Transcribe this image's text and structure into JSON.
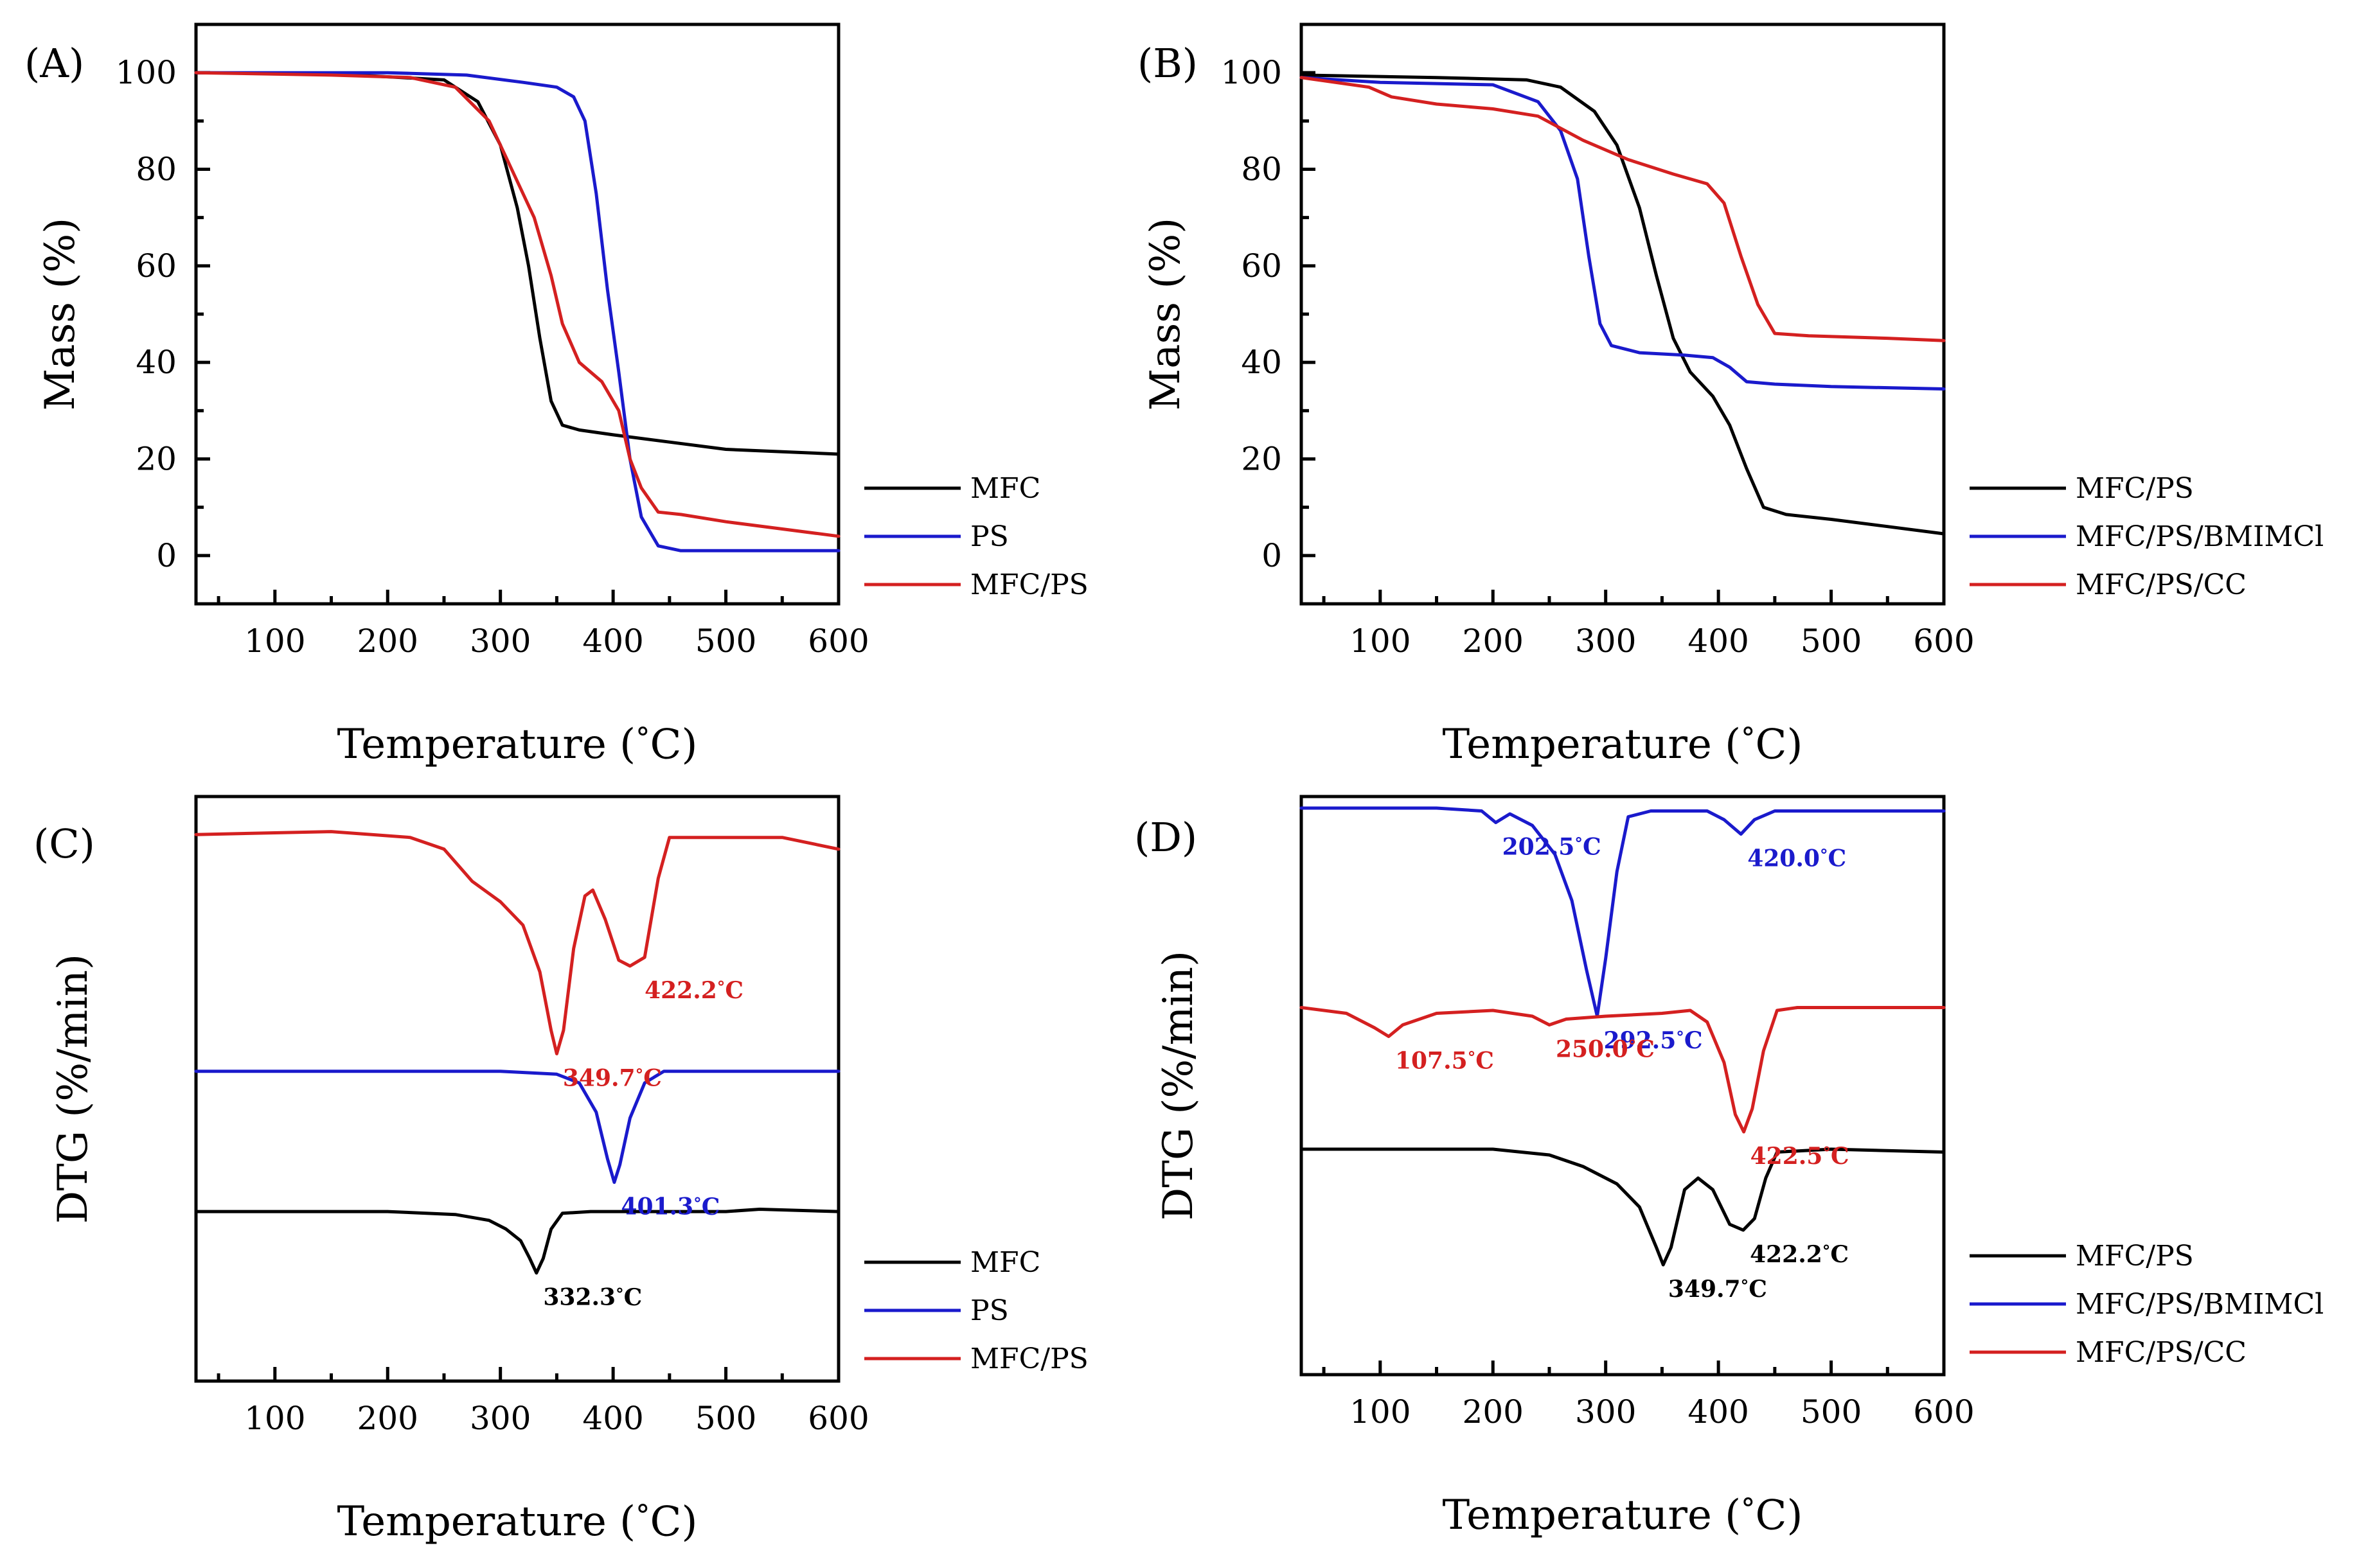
{
  "colors": {
    "black": "#000000",
    "blue": "#1a1acc",
    "red": "#d42020"
  },
  "chart_data": [
    {
      "id": "A",
      "type": "line",
      "panel_label": "(A)",
      "xlabel": "Temperature (°C)",
      "ylabel": "Mass (%)",
      "xlim": [
        30,
        600
      ],
      "ylim": [
        -10,
        110
      ],
      "xticks": [
        100,
        200,
        300,
        400,
        500,
        600
      ],
      "yticks": [
        0,
        20,
        40,
        60,
        80,
        100
      ],
      "legend": "right",
      "series": [
        {
          "name": "MFC",
          "color": "#000000",
          "points": [
            [
              30,
              100
            ],
            [
              150,
              99.8
            ],
            [
              250,
              98.5
            ],
            [
              280,
              94
            ],
            [
              300,
              85
            ],
            [
              315,
              72
            ],
            [
              325,
              60
            ],
            [
              335,
              45
            ],
            [
              345,
              32
            ],
            [
              355,
              27
            ],
            [
              370,
              26
            ],
            [
              400,
              25
            ],
            [
              450,
              23.5
            ],
            [
              500,
              22
            ],
            [
              550,
              21.5
            ],
            [
              600,
              21
            ]
          ]
        },
        {
          "name": "PS",
          "color": "#1a1acc",
          "points": [
            [
              30,
              100
            ],
            [
              200,
              100
            ],
            [
              270,
              99.5
            ],
            [
              320,
              98
            ],
            [
              350,
              97
            ],
            [
              365,
              95
            ],
            [
              375,
              90
            ],
            [
              385,
              75
            ],
            [
              395,
              55
            ],
            [
              405,
              38
            ],
            [
              415,
              20
            ],
            [
              425,
              8
            ],
            [
              440,
              2
            ],
            [
              460,
              1
            ],
            [
              500,
              1
            ],
            [
              600,
              1
            ]
          ]
        },
        {
          "name": "MFC/PS",
          "color": "#d42020",
          "points": [
            [
              30,
              100
            ],
            [
              150,
              99.5
            ],
            [
              220,
              99
            ],
            [
              260,
              97
            ],
            [
              290,
              90
            ],
            [
              310,
              80
            ],
            [
              330,
              70
            ],
            [
              345,
              58
            ],
            [
              355,
              48
            ],
            [
              370,
              40
            ],
            [
              390,
              36
            ],
            [
              405,
              30
            ],
            [
              415,
              20
            ],
            [
              425,
              14
            ],
            [
              440,
              9
            ],
            [
              460,
              8.5
            ],
            [
              500,
              7
            ],
            [
              550,
              5.5
            ],
            [
              600,
              4
            ]
          ]
        }
      ]
    },
    {
      "id": "B",
      "type": "line",
      "panel_label": "(B)",
      "xlabel": "Temperature (°C)",
      "ylabel": "Mass (%)",
      "xlim": [
        30,
        600
      ],
      "ylim": [
        -10,
        110
      ],
      "xticks": [
        100,
        200,
        300,
        400,
        500,
        600
      ],
      "yticks": [
        0,
        20,
        40,
        60,
        80,
        100
      ],
      "legend": "right",
      "series": [
        {
          "name": "MFC/PS",
          "color": "#000000",
          "points": [
            [
              30,
              99.5
            ],
            [
              150,
              99
            ],
            [
              230,
              98.5
            ],
            [
              260,
              97
            ],
            [
              290,
              92
            ],
            [
              310,
              85
            ],
            [
              330,
              72
            ],
            [
              345,
              58
            ],
            [
              360,
              45
            ],
            [
              375,
              38
            ],
            [
              395,
              33
            ],
            [
              410,
              27
            ],
            [
              425,
              18
            ],
            [
              440,
              10
            ],
            [
              460,
              8.5
            ],
            [
              500,
              7.5
            ],
            [
              550,
              6
            ],
            [
              600,
              4.5
            ]
          ]
        },
        {
          "name": "MFC/PS/BMIMCl",
          "color": "#1a1acc",
          "points": [
            [
              30,
              99
            ],
            [
              100,
              98
            ],
            [
              200,
              97.5
            ],
            [
              240,
              94
            ],
            [
              260,
              88
            ],
            [
              275,
              78
            ],
            [
              285,
              62
            ],
            [
              295,
              48
            ],
            [
              305,
              43.5
            ],
            [
              330,
              42
            ],
            [
              370,
              41.5
            ],
            [
              395,
              41
            ],
            [
              410,
              39
            ],
            [
              425,
              36
            ],
            [
              450,
              35.5
            ],
            [
              500,
              35
            ],
            [
              600,
              34.5
            ]
          ]
        },
        {
          "name": "MFC/PS/CC",
          "color": "#d42020",
          "points": [
            [
              30,
              99
            ],
            [
              90,
              97
            ],
            [
              110,
              95
            ],
            [
              150,
              93.5
            ],
            [
              200,
              92.5
            ],
            [
              240,
              91
            ],
            [
              280,
              86
            ],
            [
              320,
              82
            ],
            [
              360,
              79
            ],
            [
              390,
              77
            ],
            [
              405,
              73
            ],
            [
              420,
              62
            ],
            [
              435,
              52
            ],
            [
              450,
              46
            ],
            [
              480,
              45.5
            ],
            [
              550,
              45
            ],
            [
              600,
              44.5
            ]
          ]
        }
      ]
    },
    {
      "id": "C",
      "type": "line",
      "panel_label": "(C)",
      "xlabel": "Temperature (°C)",
      "ylabel": "DTG (%/min)",
      "xlim": [
        30,
        600
      ],
      "ylim": [
        0,
        100
      ],
      "xticks": [
        100,
        200,
        300,
        400,
        500,
        600
      ],
      "yticks": [],
      "legend": "right",
      "series": [
        {
          "name": "MFC",
          "color": "#000000",
          "points": [
            [
              30,
              29
            ],
            [
              200,
              29
            ],
            [
              260,
              28.5
            ],
            [
              290,
              27.5
            ],
            [
              305,
              26
            ],
            [
              318,
              24
            ],
            [
              326,
              21
            ],
            [
              332,
              18.5
            ],
            [
              338,
              21
            ],
            [
              345,
              26
            ],
            [
              355,
              28.7
            ],
            [
              380,
              29
            ],
            [
              500,
              29
            ],
            [
              530,
              29.4
            ],
            [
              600,
              29
            ]
          ]
        },
        {
          "name": "PS",
          "color": "#1a1acc",
          "points": [
            [
              30,
              53
            ],
            [
              300,
              53
            ],
            [
              350,
              52.5
            ],
            [
              370,
              51
            ],
            [
              385,
              46
            ],
            [
              395,
              38
            ],
            [
              401,
              34
            ],
            [
              406,
              37
            ],
            [
              415,
              45
            ],
            [
              428,
              51
            ],
            [
              445,
              53
            ],
            [
              600,
              53
            ]
          ]
        },
        {
          "name": "MFC/PS",
          "color": "#d42020",
          "points": [
            [
              30,
              93.5
            ],
            [
              150,
              94
            ],
            [
              220,
              93
            ],
            [
              250,
              91
            ],
            [
              275,
              85.5
            ],
            [
              300,
              82
            ],
            [
              320,
              78
            ],
            [
              335,
              70
            ],
            [
              345,
              60
            ],
            [
              350,
              56
            ],
            [
              356,
              60
            ],
            [
              365,
              74
            ],
            [
              375,
              83
            ],
            [
              382,
              84
            ],
            [
              393,
              79
            ],
            [
              405,
              72
            ],
            [
              415,
              71
            ],
            [
              428,
              72.5
            ],
            [
              440,
              86
            ],
            [
              450,
              93
            ],
            [
              500,
              93
            ],
            [
              550,
              93
            ],
            [
              600,
              91
            ]
          ]
        }
      ],
      "annotations": [
        {
          "text": "332.3°C",
          "color": "#000000",
          "x": 332.3,
          "y": 18.5
        },
        {
          "text": "401.3°C",
          "color": "#1a1acc",
          "x": 401.3,
          "y": 34
        },
        {
          "text": "349.7°C",
          "color": "#d42020",
          "x": 349.7,
          "y": 56
        },
        {
          "text": "422.2°C",
          "color": "#d42020",
          "x": 422.2,
          "y": 71
        }
      ]
    },
    {
      "id": "D",
      "type": "line",
      "panel_label": "(D)",
      "xlabel": "Temperature (°C)",
      "ylabel": "DTG (%/min)",
      "xlim": [
        30,
        600
      ],
      "ylim": [
        0,
        100
      ],
      "xticks": [
        100,
        200,
        300,
        400,
        500,
        600
      ],
      "yticks": [],
      "legend": "right",
      "series": [
        {
          "name": "MFC/PS",
          "color": "#000000",
          "points": [
            [
              30,
              39
            ],
            [
              200,
              39
            ],
            [
              250,
              38
            ],
            [
              280,
              36
            ],
            [
              310,
              33
            ],
            [
              330,
              29
            ],
            [
              345,
              22
            ],
            [
              351,
              19
            ],
            [
              358,
              22
            ],
            [
              370,
              32
            ],
            [
              382,
              34
            ],
            [
              395,
              32
            ],
            [
              410,
              26
            ],
            [
              422,
              25
            ],
            [
              432,
              27
            ],
            [
              442,
              34
            ],
            [
              452,
              38.5
            ],
            [
              500,
              39
            ],
            [
              600,
              38.5
            ]
          ]
        },
        {
          "name": "MFC/PS/BMIMCl",
          "color": "#1a1acc",
          "points": [
            [
              30,
              98
            ],
            [
              150,
              98
            ],
            [
              190,
              97.5
            ],
            [
              202.5,
              95.5
            ],
            [
              215,
              97
            ],
            [
              235,
              95
            ],
            [
              255,
              90
            ],
            [
              270,
              82
            ],
            [
              283,
              70
            ],
            [
              292.5,
              62
            ],
            [
              300,
              72
            ],
            [
              310,
              87
            ],
            [
              320,
              96.5
            ],
            [
              340,
              97.5
            ],
            [
              390,
              97.5
            ],
            [
              405,
              96
            ],
            [
              420,
              93.5
            ],
            [
              432,
              96
            ],
            [
              450,
              97.5
            ],
            [
              600,
              97.5
            ]
          ]
        },
        {
          "name": "MFC/PS/CC",
          "color": "#d42020",
          "points": [
            [
              30,
              63.5
            ],
            [
              70,
              62.5
            ],
            [
              95,
              60
            ],
            [
              107.5,
              58.5
            ],
            [
              120,
              60.5
            ],
            [
              150,
              62.5
            ],
            [
              200,
              63
            ],
            [
              235,
              62
            ],
            [
              250,
              60.5
            ],
            [
              265,
              61.5
            ],
            [
              300,
              62
            ],
            [
              350,
              62.5
            ],
            [
              375,
              63
            ],
            [
              390,
              61
            ],
            [
              405,
              54
            ],
            [
              415,
              45
            ],
            [
              422.5,
              42
            ],
            [
              430,
              46
            ],
            [
              440,
              56
            ],
            [
              452,
              63
            ],
            [
              470,
              63.5
            ],
            [
              600,
              63.5
            ]
          ]
        }
      ],
      "annotations": [
        {
          "text": "202.5°C",
          "color": "#1a1acc",
          "x": 202.5,
          "y": 95.5
        },
        {
          "text": "292.5°C",
          "color": "#1a1acc",
          "x": 292.5,
          "y": 62
        },
        {
          "text": "420.0°C",
          "color": "#1a1acc",
          "x": 420.0,
          "y": 93.5
        },
        {
          "text": "107.5°C",
          "color": "#d42020",
          "x": 107.5,
          "y": 58.5
        },
        {
          "text": "250.0°C",
          "color": "#d42020",
          "x": 250.0,
          "y": 60.5
        },
        {
          "text": "422.5°C",
          "color": "#d42020",
          "x": 422.5,
          "y": 42
        },
        {
          "text": "349.7°C",
          "color": "#000000",
          "x": 349.7,
          "y": 19
        },
        {
          "text": "422.2°C",
          "color": "#000000",
          "x": 422.2,
          "y": 25
        }
      ]
    }
  ]
}
